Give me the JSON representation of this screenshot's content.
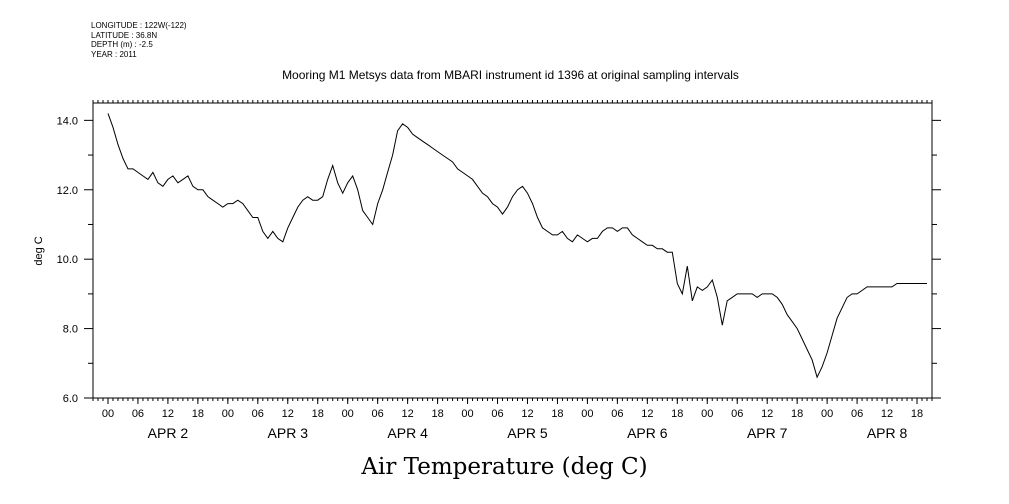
{
  "header": {
    "longitude": "LONGITUDE : 122W(-122)",
    "latitude": "LATITUDE : 36.8N",
    "depth": "DEPTH (m) : -2.5",
    "year": "YEAR : 2011"
  },
  "chart_data": {
    "type": "line",
    "title": "Mooring M1 Metsys data from MBARI instrument id 1396 at original sampling intervals",
    "xlabel": "Air Temperature (deg C)",
    "ylabel": "deg C",
    "ylim": [
      6.0,
      14.5
    ],
    "yticks": [
      "6.0",
      "8.0",
      "10.0",
      "12.0",
      "14.0"
    ],
    "xlim_hours": [
      -3,
      165
    ],
    "hour_tick_labels": [
      "00",
      "06",
      "12",
      "18"
    ],
    "day_labels": [
      "APR 2",
      "APR 3",
      "APR 4",
      "APR 5",
      "APR 6",
      "APR 7",
      "APR 8"
    ],
    "series": [
      {
        "x_hours": [
          0,
          1,
          2,
          3,
          4,
          5,
          6,
          7,
          8,
          9,
          10,
          11,
          12,
          13,
          14,
          15,
          16,
          17,
          18,
          19,
          20,
          21,
          22,
          23,
          24,
          25,
          26,
          27,
          28,
          29,
          30,
          31,
          32,
          33,
          34,
          35,
          36,
          37,
          38,
          39,
          40,
          41,
          42,
          43,
          44,
          45,
          46,
          47,
          48,
          49,
          50,
          51,
          52,
          53,
          54,
          55,
          56,
          57,
          58,
          59,
          60,
          61,
          62,
          63,
          64,
          65,
          66,
          67,
          68,
          69,
          70,
          71,
          72,
          73,
          74,
          75,
          76,
          77,
          78,
          79,
          80,
          81,
          82,
          83,
          84,
          85,
          86,
          87,
          88,
          89,
          90,
          91,
          92,
          93,
          94,
          95,
          96,
          97,
          98,
          99,
          100,
          101,
          102,
          103,
          104,
          105,
          106,
          107,
          108,
          109,
          110,
          111,
          112,
          113,
          114,
          115,
          116,
          117,
          118,
          119,
          120,
          121,
          122,
          123,
          124,
          125,
          126,
          127,
          128,
          129,
          130,
          131,
          132,
          133,
          134,
          135,
          136,
          137,
          138,
          139,
          140,
          141,
          142,
          143,
          144,
          145,
          146,
          147,
          148,
          149,
          150,
          151,
          152,
          153,
          154,
          155,
          156,
          157,
          158,
          159,
          160,
          161,
          162,
          163,
          164
        ],
        "values": [
          14.2,
          13.8,
          13.3,
          12.9,
          12.6,
          12.6,
          12.5,
          12.4,
          12.3,
          12.5,
          12.2,
          12.1,
          12.3,
          12.4,
          12.2,
          12.3,
          12.4,
          12.1,
          12.0,
          12.0,
          11.8,
          11.7,
          11.6,
          11.5,
          11.6,
          11.6,
          11.7,
          11.6,
          11.4,
          11.2,
          11.2,
          10.8,
          10.6,
          10.8,
          10.6,
          10.5,
          10.9,
          11.2,
          11.5,
          11.7,
          11.8,
          11.7,
          11.7,
          11.8,
          12.3,
          12.7,
          12.2,
          11.9,
          12.2,
          12.4,
          12.0,
          11.4,
          11.2,
          11.0,
          11.6,
          12.0,
          12.5,
          13.0,
          13.7,
          13.9,
          13.8,
          13.6,
          13.5,
          13.4,
          13.3,
          13.2,
          13.1,
          13.0,
          12.9,
          12.8,
          12.6,
          12.5,
          12.4,
          12.3,
          12.1,
          11.9,
          11.8,
          11.6,
          11.5,
          11.3,
          11.5,
          11.8,
          12.0,
          12.1,
          11.9,
          11.6,
          11.2,
          10.9,
          10.8,
          10.7,
          10.7,
          10.8,
          10.6,
          10.5,
          10.7,
          10.6,
          10.5,
          10.6,
          10.6,
          10.8,
          10.9,
          10.9,
          10.8,
          10.9,
          10.9,
          10.7,
          10.6,
          10.5,
          10.4,
          10.4,
          10.3,
          10.3,
          10.2,
          10.2,
          9.3,
          9.0,
          9.8,
          8.8,
          9.2,
          9.1,
          9.2,
          9.4,
          8.9,
          8.1,
          8.8,
          8.9,
          9.0,
          9.0,
          9.0,
          9.0,
          8.9,
          9.0,
          9.0,
          9.0,
          8.9,
          8.7,
          8.4,
          8.2,
          8.0,
          7.7,
          7.4,
          7.1,
          6.6,
          6.9,
          7.3,
          7.8,
          8.3,
          8.6,
          8.9,
          9.0,
          9.0,
          9.1,
          9.2,
          9.2,
          9.2,
          9.2,
          9.2,
          9.2,
          9.3,
          9.3,
          9.3,
          9.3,
          9.3,
          9.3,
          9.3
        ]
      }
    ]
  }
}
